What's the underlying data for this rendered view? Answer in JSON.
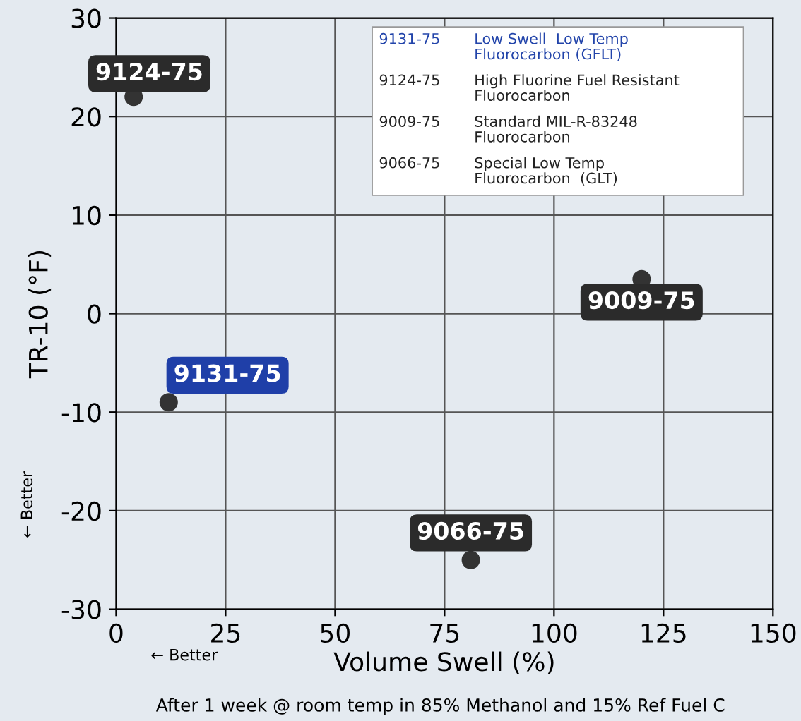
{
  "chart_data": {
    "type": "scatter",
    "xlabel": "Volume Swell (%)",
    "ylabel": "TR-10 (°F)",
    "x": [
      4,
      12,
      120,
      81
    ],
    "values": [
      22,
      -9,
      3.5,
      -25
    ],
    "color": "#333333",
    "marker": "circle",
    "xlim": [
      0,
      150
    ],
    "xticks": [
      0,
      25,
      50,
      75,
      100,
      125,
      150
    ],
    "ylim": [
      -30,
      30
    ],
    "yticks": [
      -30,
      -20,
      -10,
      0,
      10,
      20,
      30
    ],
    "grid": true,
    "annotations": [
      {
        "text": "9124-75",
        "x": 4,
        "y": 22
      },
      {
        "text": "9131-75",
        "x": 12,
        "y": -9
      },
      {
        "text": "9009-75",
        "x": 120,
        "y": 3.5
      },
      {
        "text": "9066-75",
        "x": 81,
        "y": -25
      },
      "9131-75",
      "Low Swell  Low Temp\nFluorocarbon (GFLT)",
      "9124-75",
      "High Fluorine Fuel Resistant\nFluorocarbon",
      "9009-75",
      "Standard MIL-R-83248\nFluorocarbon",
      "9066-75",
      "Special Low Temp\nFluorocarbon  (GLT)",
      "← Better",
      "← Better",
      "After 1 week @ room temp in 85% Methanol and 15% Ref Fuel C"
    ]
  }
}
